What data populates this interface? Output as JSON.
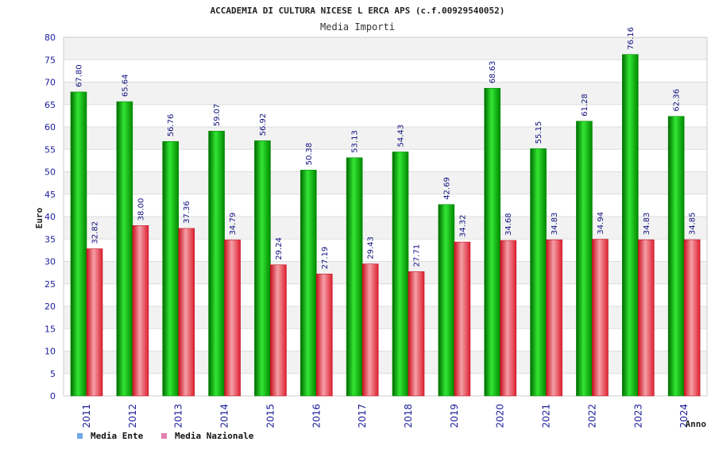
{
  "chart_data": {
    "type": "bar",
    "title": "ACCADEMIA DI CULTURA NICESE L ERCA APS (c.f.00929540052)",
    "subtitle": "Media Importi",
    "xlabel": "Anno",
    "ylabel": "Euro",
    "ylim": [
      0,
      80
    ],
    "yticks": [
      0,
      5,
      10,
      15,
      20,
      25,
      30,
      35,
      40,
      45,
      50,
      55,
      60,
      65,
      70,
      75,
      80
    ],
    "grid": true,
    "legend_position": "bottom-left",
    "categories": [
      "2011",
      "2012",
      "2013",
      "2014",
      "2015",
      "2016",
      "2017",
      "2018",
      "2019",
      "2020",
      "2021",
      "2022",
      "2023",
      "2024"
    ],
    "series": [
      {
        "name": "Media Ente",
        "color": "#00bb00",
        "legend_color": "#6fa8e8",
        "values": [
          67.8,
          65.64,
          56.76,
          59.07,
          56.92,
          50.38,
          53.13,
          54.43,
          42.69,
          68.63,
          55.15,
          61.28,
          76.16,
          62.36
        ],
        "labels": [
          "67.80",
          "65.64",
          "56.76",
          "59.07",
          "56.92",
          "50.38",
          "53.13",
          "54.43",
          "42.69",
          "68.63",
          "55.15",
          "61.28",
          "76.16",
          "62.36"
        ]
      },
      {
        "name": "Media Nazionale",
        "color": "#e83040",
        "legend_color": "#e680b0",
        "values": [
          32.82,
          38.0,
          37.36,
          34.79,
          29.24,
          27.19,
          29.43,
          27.71,
          34.32,
          34.68,
          34.83,
          34.94,
          34.83,
          34.85
        ],
        "labels": [
          "32.82",
          "38.00",
          "37.36",
          "34.79",
          "29.24",
          "27.19",
          "29.43",
          "27.71",
          "34.32",
          "34.68",
          "34.83",
          "34.94",
          "34.83",
          "34.85"
        ]
      }
    ]
  }
}
